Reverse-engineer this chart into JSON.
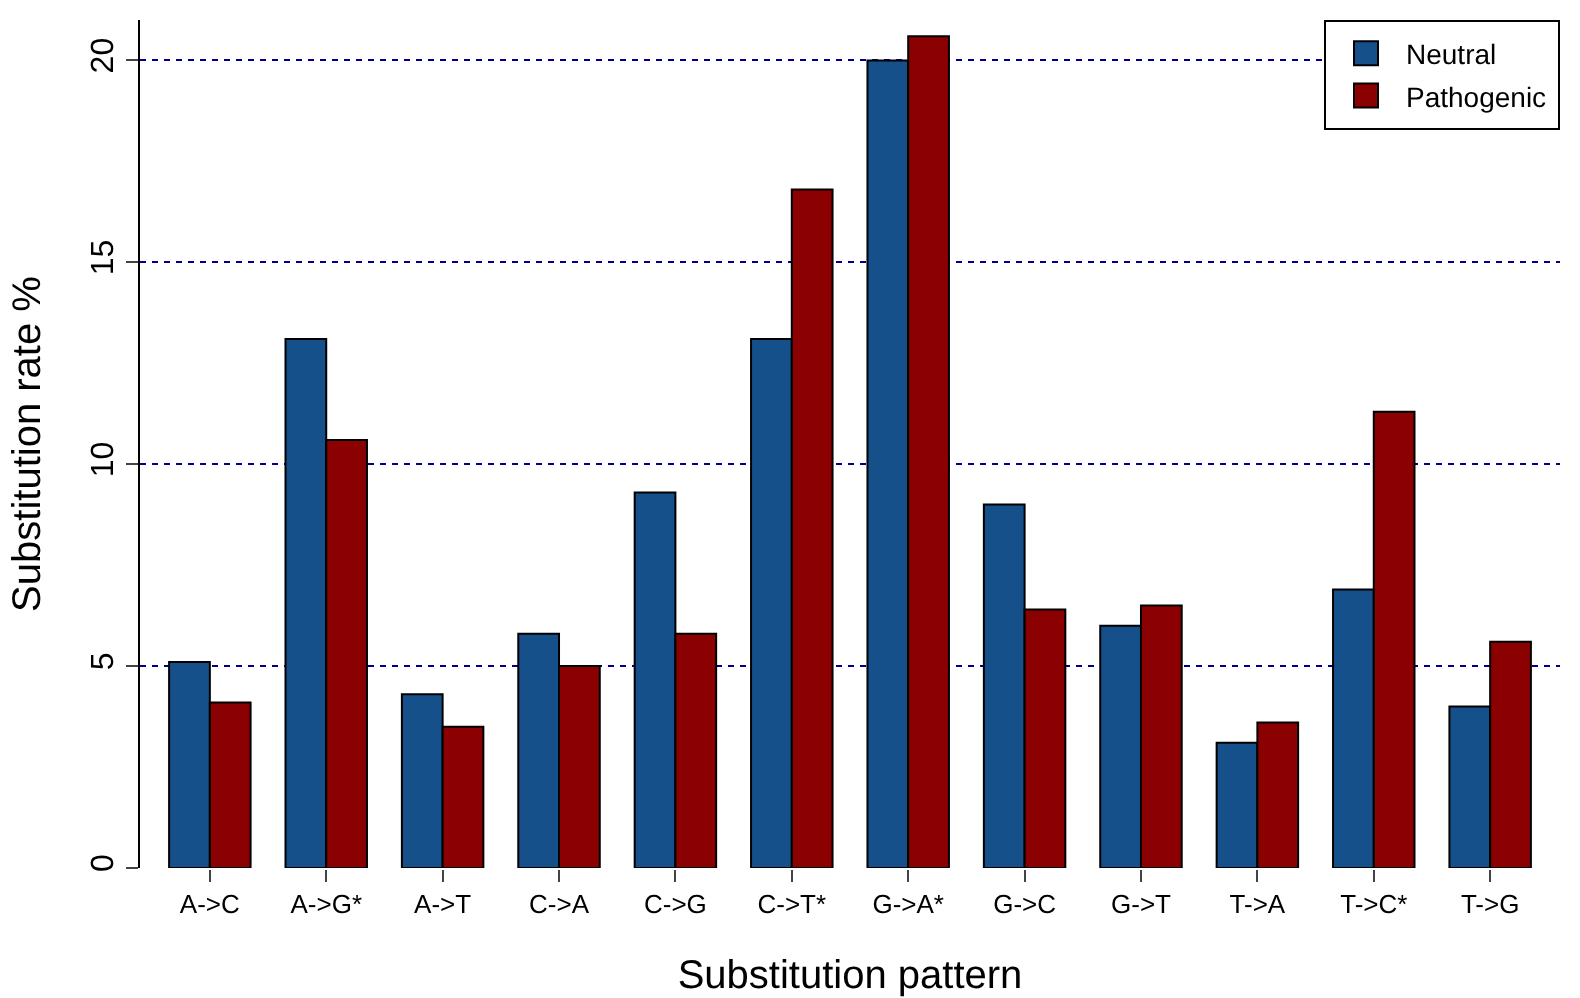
{
  "chart_data": {
    "type": "bar",
    "xlabel": "Substitution pattern",
    "ylabel": "Substitution rate %",
    "categories": [
      "A->C",
      "A->G*",
      "A->T",
      "C->A",
      "C->G",
      "C->T*",
      "G->A*",
      "G->C",
      "G->T",
      "T->A",
      "T->C*",
      "T->G"
    ],
    "series": [
      {
        "name": "Neutral",
        "color": "#15508b",
        "values": [
          5.1,
          13.1,
          4.3,
          5.8,
          9.3,
          13.1,
          20.0,
          9.0,
          6.0,
          3.1,
          6.9,
          4.0
        ]
      },
      {
        "name": "Pathogenic",
        "color": "#8b0000",
        "values": [
          4.1,
          10.6,
          3.5,
          5.0,
          5.8,
          16.8,
          20.6,
          6.4,
          6.5,
          3.6,
          11.3,
          5.6
        ]
      }
    ],
    "ylim": [
      0,
      21
    ],
    "yticks": [
      0,
      5,
      10,
      15,
      20
    ],
    "grid": "y",
    "legend": "top right"
  }
}
